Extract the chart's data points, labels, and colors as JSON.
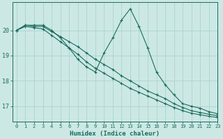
{
  "xlabel": "Humidex (Indice chaleur)",
  "background_color": "#cce8e4",
  "line_color": "#1a6b5e",
  "grid_color": "#aad4cc",
  "xlim": [
    -0.5,
    23
  ],
  "ylim": [
    16.4,
    21.1
  ],
  "yticks": [
    17,
    18,
    19,
    20
  ],
  "xticks": [
    0,
    1,
    2,
    3,
    4,
    5,
    6,
    7,
    8,
    9,
    10,
    11,
    12,
    13,
    14,
    15,
    16,
    17,
    18,
    19,
    20,
    21,
    22,
    23
  ],
  "series": [
    [
      20.0,
      20.2,
      20.15,
      20.15,
      19.95,
      19.75,
      19.55,
      19.35,
      19.1,
      18.85,
      18.65,
      18.45,
      18.2,
      18.0,
      17.8,
      17.6,
      17.45,
      17.3,
      17.1,
      16.95,
      16.82,
      16.75,
      16.68,
      16.62
    ],
    [
      20.0,
      20.15,
      20.1,
      20.05,
      19.8,
      19.55,
      19.3,
      19.05,
      18.75,
      18.5,
      18.3,
      18.1,
      17.9,
      17.7,
      17.55,
      17.4,
      17.25,
      17.1,
      16.95,
      16.82,
      16.72,
      16.66,
      16.6,
      16.55
    ],
    [
      20.0,
      20.2,
      20.2,
      20.2,
      20.0,
      19.7,
      19.3,
      18.85,
      18.55,
      18.35,
      19.1,
      19.7,
      20.4,
      20.85,
      20.15,
      19.3,
      18.35,
      17.85,
      17.45,
      17.1,
      17.0,
      16.92,
      16.78,
      16.7
    ]
  ]
}
